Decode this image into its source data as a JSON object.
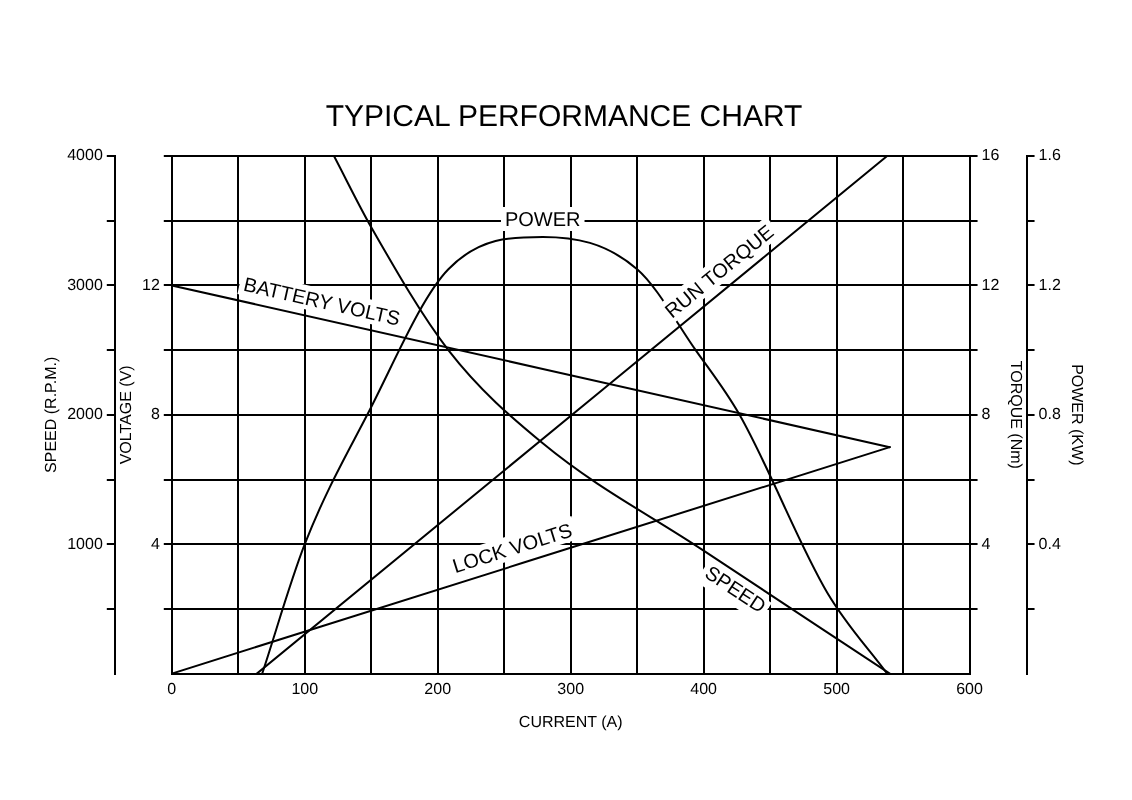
{
  "chart_data": {
    "type": "line",
    "title": "TYPICAL PERFORMANCE CHART",
    "xlabel": "CURRENT (A)",
    "ylabel": "SPEED (R.P.M.)",
    "y2label": "TORQUE (Nm)",
    "y3label": "POWER (KW)",
    "annotations": [
      "VOLTAGE (V)",
      "4",
      "8",
      "12"
    ],
    "xlim": [
      0,
      600
    ],
    "xticks": [
      0,
      {
        "value": 50,
        "label": null
      },
      100,
      {
        "value": 150,
        "label": null
      },
      200,
      {
        "value": 250,
        "label": null
      },
      300,
      {
        "value": 350,
        "label": null
      },
      400,
      {
        "value": 450,
        "label": null
      },
      500,
      {
        "value": 550,
        "label": null
      },
      600
    ],
    "ylim": [
      0,
      4000
    ],
    "yticks": [
      {
        "value": 500,
        "label": null
      },
      1000,
      {
        "value": 1500,
        "label": null
      },
      2000,
      {
        "value": 2500,
        "label": null
      },
      3000,
      {
        "value": 3500,
        "label": null
      },
      4000
    ],
    "y2lim": [
      0,
      16
    ],
    "y2ticks": [
      {
        "value": 2,
        "label": null
      },
      4,
      {
        "value": 6,
        "label": null
      },
      8,
      {
        "value": 10,
        "label": null
      },
      12,
      {
        "value": 14,
        "label": null
      },
      16
    ],
    "y3lim": [
      0,
      1.6
    ],
    "y3ticks": [
      {
        "value": 0.2,
        "label": null
      },
      0.4,
      {
        "value": 0.6,
        "label": null
      },
      0.8,
      {
        "value": 1,
        "label": null
      },
      1.2,
      {
        "value": 1.4,
        "label": null
      },
      1.6
    ],
    "grid": true,
    "legend": false,
    "marker": "none",
    "line_style": "solid",
    "series": [
      {
        "name": "SPEED",
        "color": "#000000",
        "x": [
          122,
          150,
          208,
          279,
          400,
          540
        ],
        "values": [
          4000,
          3450,
          2500,
          1780,
          950,
          0
        ]
      },
      {
        "name": "BATTERY VOLTS",
        "color": "#000000",
        "axis": "y2",
        "x": [
          0,
          540
        ],
        "values": [
          12,
          7
        ]
      },
      {
        "name": "LOCK VOLTS",
        "color": "#000000",
        "axis": "y2",
        "x": [
          0,
          540
        ],
        "values": [
          0,
          7
        ]
      },
      {
        "name": "RUN TORQUE",
        "color": "#000000",
        "axis": "y2",
        "x": [
          64,
          538
        ],
        "values": [
          0,
          16
        ]
      },
      {
        "name": "POWER",
        "color": "#000000",
        "axis": "y3",
        "x": [
          68,
          100,
          147,
          208,
          279,
          350,
          394,
          427,
          493,
          538
        ],
        "values": [
          0,
          0.4,
          0.8,
          1.25,
          1.35,
          1.25,
          1,
          0.8,
          0.25,
          0
        ]
      }
    ]
  }
}
